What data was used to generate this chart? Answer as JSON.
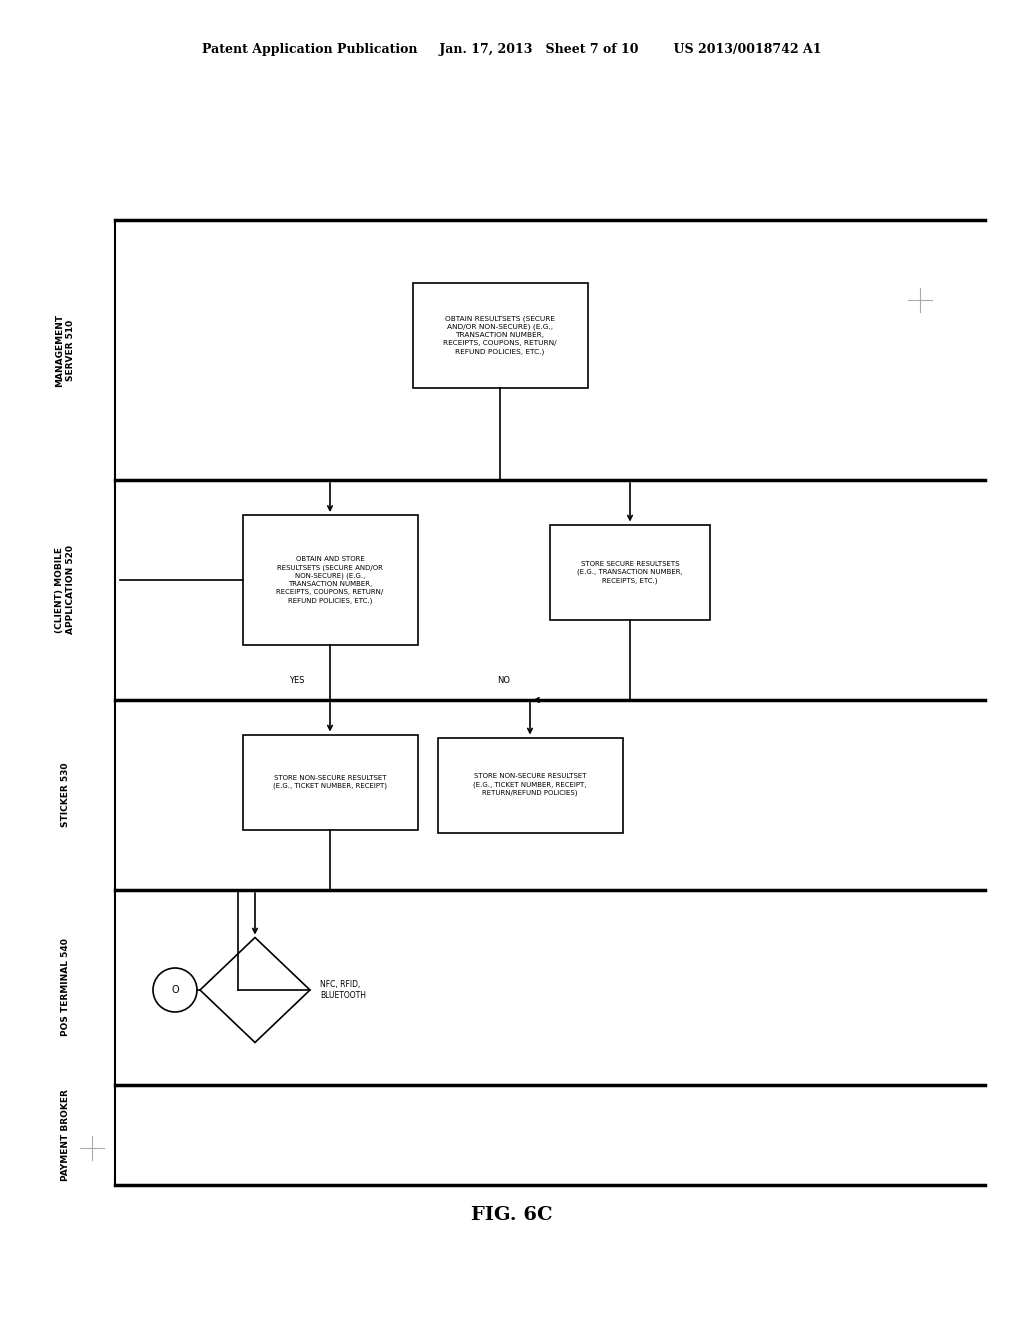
{
  "bg_color": "#ffffff",
  "header_text1": "Patent Application Publication",
  "header_text2": "Jan. 17, 2013",
  "header_text3": "Sheet 7 of 10",
  "header_text4": "US 2013/0018742 A1",
  "fig_label": "FIG. 6C",
  "lane_labels": [
    "MANAGEMENT\nSERVER 510",
    "(CLIENT) MOBILE\nAPPLICATION 520",
    "STICKER 530",
    "POS TERMINAL 540",
    "PAYMENT BROKER"
  ],
  "box1_text": "OBTAIN RESULTSETS (SECURE\nAND/OR NON-SECURE) (E.G.,\nTRANSACTION NUMBER,\nRECEIPTS, COUPONS, RETURN/\nREFUND POLICIES, ETC.)",
  "box2_text": "OBTAIN AND STORE\nRESULTSETS (SECURE AND/OR\nNON-SECURE) (E.G.,\nTRANSACTION NUMBER,\nRECEIPTS, COUPONS, RETURN/\nREFUND POLICIES, ETC.)",
  "box3_text": "STORE SECURE RESULTSETS\n(E.G., TRANSACTION NUMBER,\nRECEIPTS, ETC.)",
  "box4_text": "STORE NON-SECURE RESULTSET\n(E.G., TICKET NUMBER, RECEIPT)",
  "box5_text": "STORE NON-SECURE RESULTSET\n(E.G., TICKET NUMBER, RECEIPT,\nRETURN/REFUND POLICIES)",
  "diamond_text": "NFC, RFID,\nBLUETOOTH",
  "yes_label": "YES",
  "no_label": "NO"
}
